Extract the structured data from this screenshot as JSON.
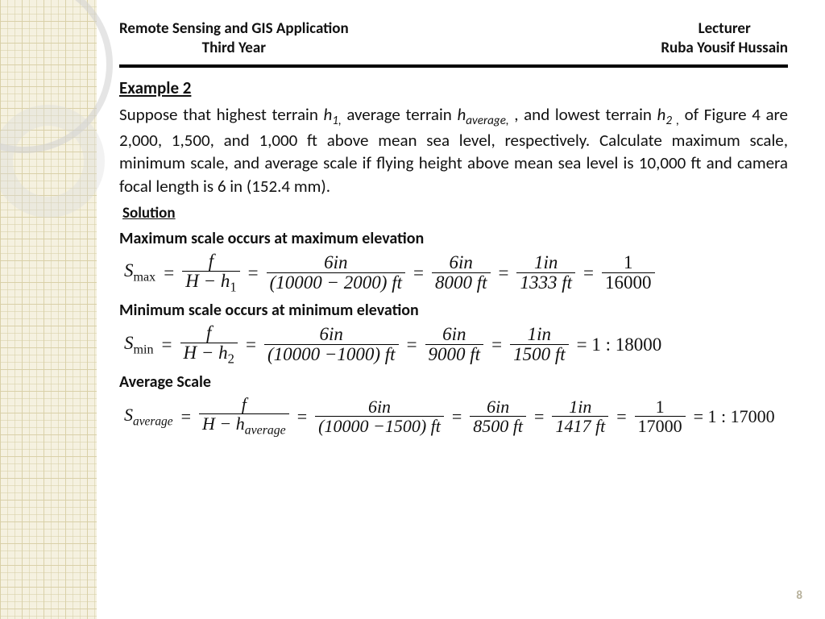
{
  "header": {
    "left_line1": "Remote Sensing and GIS Application",
    "left_line2": "Third Year",
    "right_line1": "Lecturer",
    "right_line2": "Ruba Yousif Hussain"
  },
  "example_title": "Example 2",
  "problem": {
    "p1": "Suppose that highest terrain ",
    "v1": "h",
    "s1": "1,",
    "p2": " average terrain ",
    "v2": "h",
    "s2": "average,",
    "p3": " , and lowest terrain ",
    "v3": "h",
    "s3": "2 ,",
    "p4": " of Figure 4 are 2,000, 1,500, and 1,000 ft above mean sea level, respectively. Calculate maximum scale, minimum scale, and average scale if flying height above mean sea level is 10,000 ft and camera focal length is 6 in (152.4 mm)."
  },
  "solution_label": "Solution",
  "sections": {
    "max": "Maximum scale occurs at maximum elevation",
    "min": "Minimum scale occurs at minimum elevation",
    "avg": "Average  Scale"
  },
  "eq_max": {
    "lhs": "S",
    "lhs_sub": "max",
    "f1n": "f",
    "f1d_a": "H − h",
    "f1d_sub": "1",
    "f2n": "6in",
    "f2d": "(10000 − 2000) ft",
    "f3n": "6in",
    "f3d": "8000 ft",
    "f4n": "1in",
    "f4d": "1333 ft",
    "f5n": "1",
    "f5d": "16000"
  },
  "eq_min": {
    "lhs": "S",
    "lhs_sub": "min",
    "f1n": "f",
    "f1d_a": "H − h",
    "f1d_sub": "2",
    "f2n": "6in",
    "f2d": "(10000 −1000) ft",
    "f3n": "6in",
    "f3d": "9000 ft",
    "f4n": "1in",
    "f4d": "1500 ft",
    "tail": "= 1 : 18000"
  },
  "eq_avg": {
    "lhs": "S",
    "lhs_sub": "average",
    "f1n": "f",
    "f1d_a": "H − h",
    "f1d_sub": "average",
    "f2n": "6in",
    "f2d": "(10000 −1500) ft",
    "f3n": "6in",
    "f3d": "8500 ft",
    "f4n": "1in",
    "f4d": "1417 ft",
    "f5n": "1",
    "f5d": "17000",
    "tail": "= 1 : 17000"
  },
  "page_number": "8",
  "colors": {
    "sidebar_bg": "#f5f1e0",
    "grid_line": "#d8cfa6",
    "ring": "#d0d0d0",
    "text": "#111111",
    "pagenum": "#b7b19c"
  }
}
